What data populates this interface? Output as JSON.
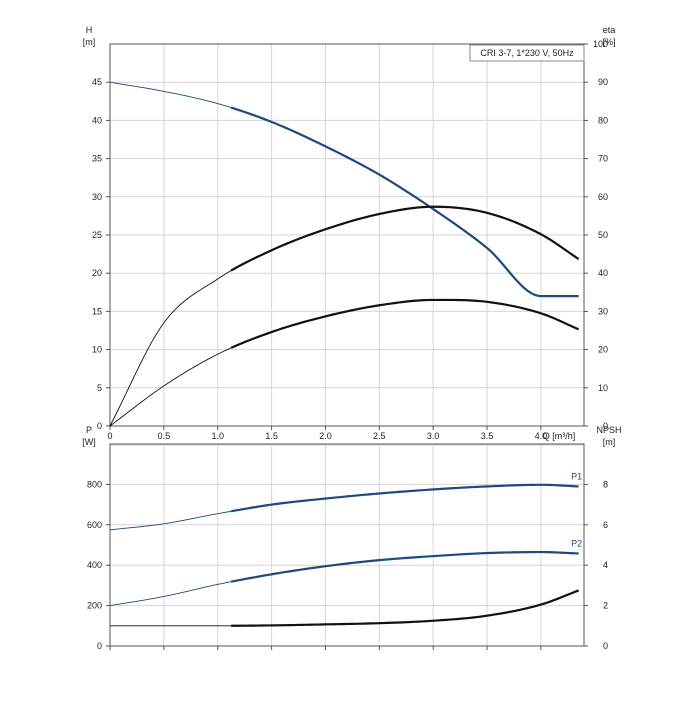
{
  "chart_data": [
    {
      "type": "line",
      "panel": "head-efficiency",
      "legend_text": "CRI 3-7, 1*230 V, 50Hz",
      "legend_placement": "top-right",
      "grid": true,
      "x_unit_label": "Q [m³/h]",
      "x_ticks": [
        "0",
        "0.5",
        "1.0",
        "1.5",
        "2.0",
        "2.5",
        "3.0",
        "3.5",
        "4.0"
      ],
      "xlim": [
        0,
        4.4
      ],
      "left_axis": {
        "label": "H",
        "unit": "[m]",
        "ticks": [
          "0",
          "5",
          "10",
          "15",
          "20",
          "25",
          "30",
          "35",
          "40",
          "45"
        ],
        "ylim": [
          0,
          50
        ]
      },
      "right_axis": {
        "label": "eta",
        "unit": "[%]",
        "ticks": [
          "0",
          "10",
          "20",
          "30",
          "40",
          "50",
          "60",
          "70",
          "80",
          "90",
          "100"
        ],
        "ylim": [
          0,
          100
        ]
      },
      "series": [
        {
          "axis": "left",
          "color": "#1c4a80",
          "x": [
            0,
            0.5,
            1.0,
            1.5,
            2.0,
            2.5,
            3.0,
            3.5,
            4.0,
            4.35
          ],
          "values": [
            45,
            43.8,
            42.2,
            39.8,
            36.6,
            32.9,
            28.4,
            23.3,
            17.0,
            17.0
          ],
          "operating_range": [
            1.15,
            4.35
          ]
        },
        {
          "axis": "right",
          "color": "#111111",
          "x": [
            0,
            0.5,
            1.0,
            1.5,
            2.0,
            2.5,
            3.0,
            3.5,
            4.0,
            4.35
          ],
          "values": [
            0,
            27,
            38.5,
            46,
            51.5,
            55.5,
            57.4,
            55.8,
            50.2,
            43.7
          ],
          "operating_range": [
            1.15,
            4.35
          ]
        },
        {
          "axis": "right",
          "color": "#111111",
          "x": [
            0,
            0.5,
            1.0,
            1.5,
            2.0,
            2.5,
            3.0,
            3.5,
            4.0,
            4.35
          ],
          "values": [
            0,
            10.5,
            18.8,
            24.6,
            28.7,
            31.6,
            33.0,
            32.5,
            29.5,
            25.3
          ],
          "operating_range": [
            1.15,
            4.35
          ]
        }
      ]
    },
    {
      "type": "line",
      "panel": "power-npsh",
      "grid": true,
      "xlim": [
        0,
        4.4
      ],
      "left_axis": {
        "label": "P",
        "unit": "[W]",
        "ticks": [
          "0",
          "200",
          "400",
          "600",
          "800"
        ],
        "ylim": [
          0,
          1000
        ]
      },
      "right_axis": {
        "label": "NPSH",
        "unit": "[m]",
        "ticks": [
          "0",
          "2",
          "4",
          "6",
          "8"
        ],
        "ylim": [
          0,
          10
        ]
      },
      "series": [
        {
          "name": "P1",
          "axis": "left",
          "color": "#1c4a80",
          "x": [
            0,
            0.5,
            1.0,
            1.5,
            2.0,
            2.5,
            3.0,
            3.5,
            4.0,
            4.35
          ],
          "values": [
            575,
            605,
            655,
            700,
            730,
            755,
            775,
            790,
            798,
            790
          ],
          "operating_range": [
            1.15,
            4.35
          ]
        },
        {
          "name": "P2",
          "axis": "left",
          "color": "#1c4a80",
          "x": [
            0,
            0.5,
            1.0,
            1.5,
            2.0,
            2.5,
            3.0,
            3.5,
            4.0,
            4.35
          ],
          "values": [
            200,
            245,
            305,
            355,
            395,
            425,
            445,
            460,
            465,
            458
          ],
          "operating_range": [
            1.15,
            4.35
          ]
        },
        {
          "axis": "right",
          "color": "#111111",
          "x": [
            0,
            0.5,
            1.0,
            1.5,
            2.0,
            2.5,
            3.0,
            3.5,
            4.0,
            4.35
          ],
          "values": [
            1.0,
            1.0,
            1.0,
            1.02,
            1.07,
            1.13,
            1.25,
            1.5,
            2.05,
            2.75
          ],
          "operating_range": [
            1.15,
            4.35
          ]
        }
      ]
    }
  ]
}
